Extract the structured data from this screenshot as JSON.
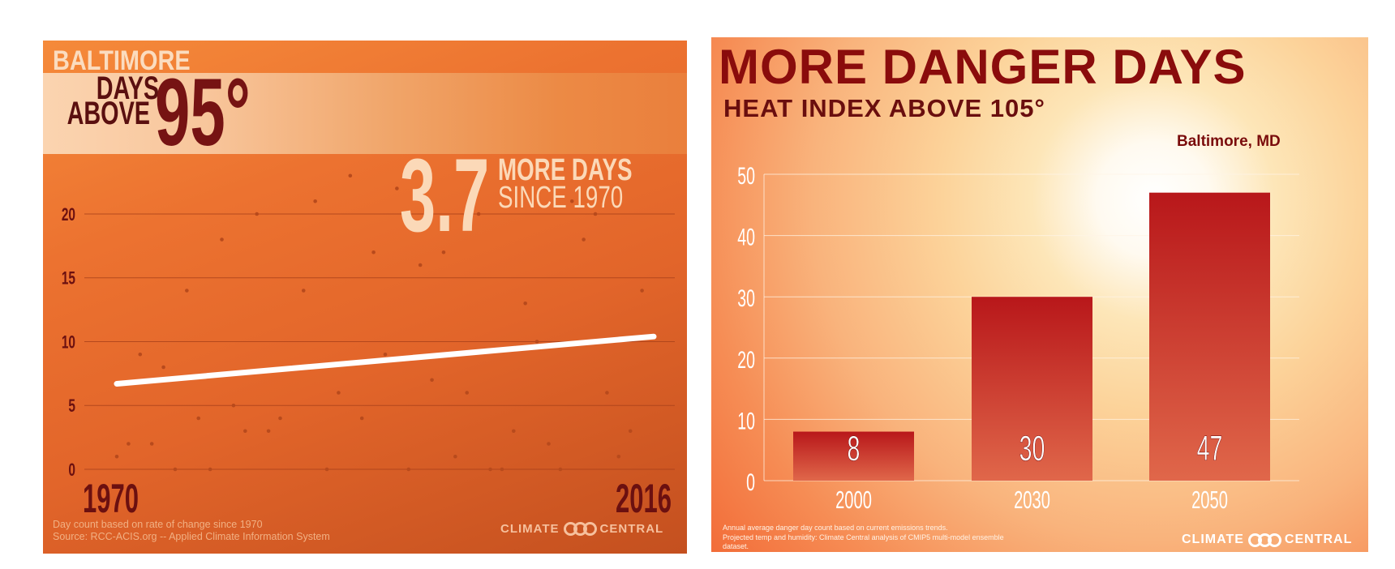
{
  "chart_data": [
    {
      "type": "scatter",
      "title": "BALTIMORE",
      "subtitle": "DAYS ABOVE 95°",
      "subtitle_parts": {
        "line1": "DAYS",
        "line2": "ABOVE",
        "big": "95°"
      },
      "annotation": {
        "value": "3.7",
        "line1": "MORE DAYS",
        "line2": "SINCE 1970"
      },
      "x_labels": [
        "1970",
        "2016"
      ],
      "xlim": [
        1970,
        2016
      ],
      "ylim": [
        0,
        23
      ],
      "yticks": [
        0,
        5,
        10,
        15,
        20
      ],
      "grid": true,
      "points": [
        [
          1970,
          1
        ],
        [
          1971,
          2
        ],
        [
          1972,
          9
        ],
        [
          1973,
          2
        ],
        [
          1974,
          8
        ],
        [
          1975,
          0
        ],
        [
          1976,
          14
        ],
        [
          1977,
          4
        ],
        [
          1978,
          0
        ],
        [
          1979,
          18
        ],
        [
          1980,
          5
        ],
        [
          1981,
          3
        ],
        [
          1982,
          20
        ],
        [
          1983,
          3
        ],
        [
          1984,
          4
        ],
        [
          1985,
          8
        ],
        [
          1986,
          14
        ],
        [
          1987,
          21
        ],
        [
          1988,
          0
        ],
        [
          1989,
          6
        ],
        [
          1990,
          23
        ],
        [
          1991,
          4
        ],
        [
          1992,
          17
        ],
        [
          1993,
          9
        ],
        [
          1994,
          22
        ],
        [
          1995,
          0
        ],
        [
          1996,
          16
        ],
        [
          1997,
          7
        ],
        [
          1998,
          17
        ],
        [
          1999,
          1
        ],
        [
          2000,
          6
        ],
        [
          2001,
          20
        ],
        [
          2002,
          0
        ],
        [
          2003,
          0
        ],
        [
          2004,
          3
        ],
        [
          2005,
          13
        ],
        [
          2006,
          10
        ],
        [
          2007,
          2
        ],
        [
          2008,
          0
        ],
        [
          2009,
          21
        ],
        [
          2010,
          18
        ],
        [
          2011,
          20
        ],
        [
          2012,
          6
        ],
        [
          2013,
          1
        ],
        [
          2014,
          3
        ],
        [
          2015,
          14
        ]
      ],
      "trend_line": {
        "x": [
          1970,
          2016
        ],
        "y": [
          6.7,
          10.4
        ]
      },
      "footnote": [
        "Day count based on rate of change since 1970",
        "Source: RCC-ACIS.org -- Applied Climate Information System"
      ],
      "logo": {
        "left": "CLIMATE",
        "right": "CENTRAL"
      },
      "colors": {
        "background": "#e46a2b",
        "dots": "#b84a1c",
        "trend": "#ffffff",
        "dark_text": "#6e1010"
      }
    },
    {
      "type": "bar",
      "title": "MORE DANGER DAYS",
      "subtitle": "HEAT INDEX ABOVE 105°",
      "location": "Baltimore, MD",
      "categories": [
        "2000",
        "2030",
        "2050"
      ],
      "values": [
        8,
        30,
        47
      ],
      "ylim": [
        0,
        50
      ],
      "yticks": [
        0,
        10,
        20,
        30,
        40,
        50
      ],
      "grid": true,
      "footnote": [
        "Annual average danger day count based on current emissions trends.",
        "Projected temp and humidity: Climate Central analysis of CMIP5 multi-model ensemble",
        "dataset."
      ],
      "logo": {
        "left": "CLIMATE",
        "right": "CENTRAL"
      },
      "colors": {
        "bar_top": "#b8171a",
        "bar_bottom": "#e0674a",
        "title": "#8a0c0c"
      }
    }
  ]
}
